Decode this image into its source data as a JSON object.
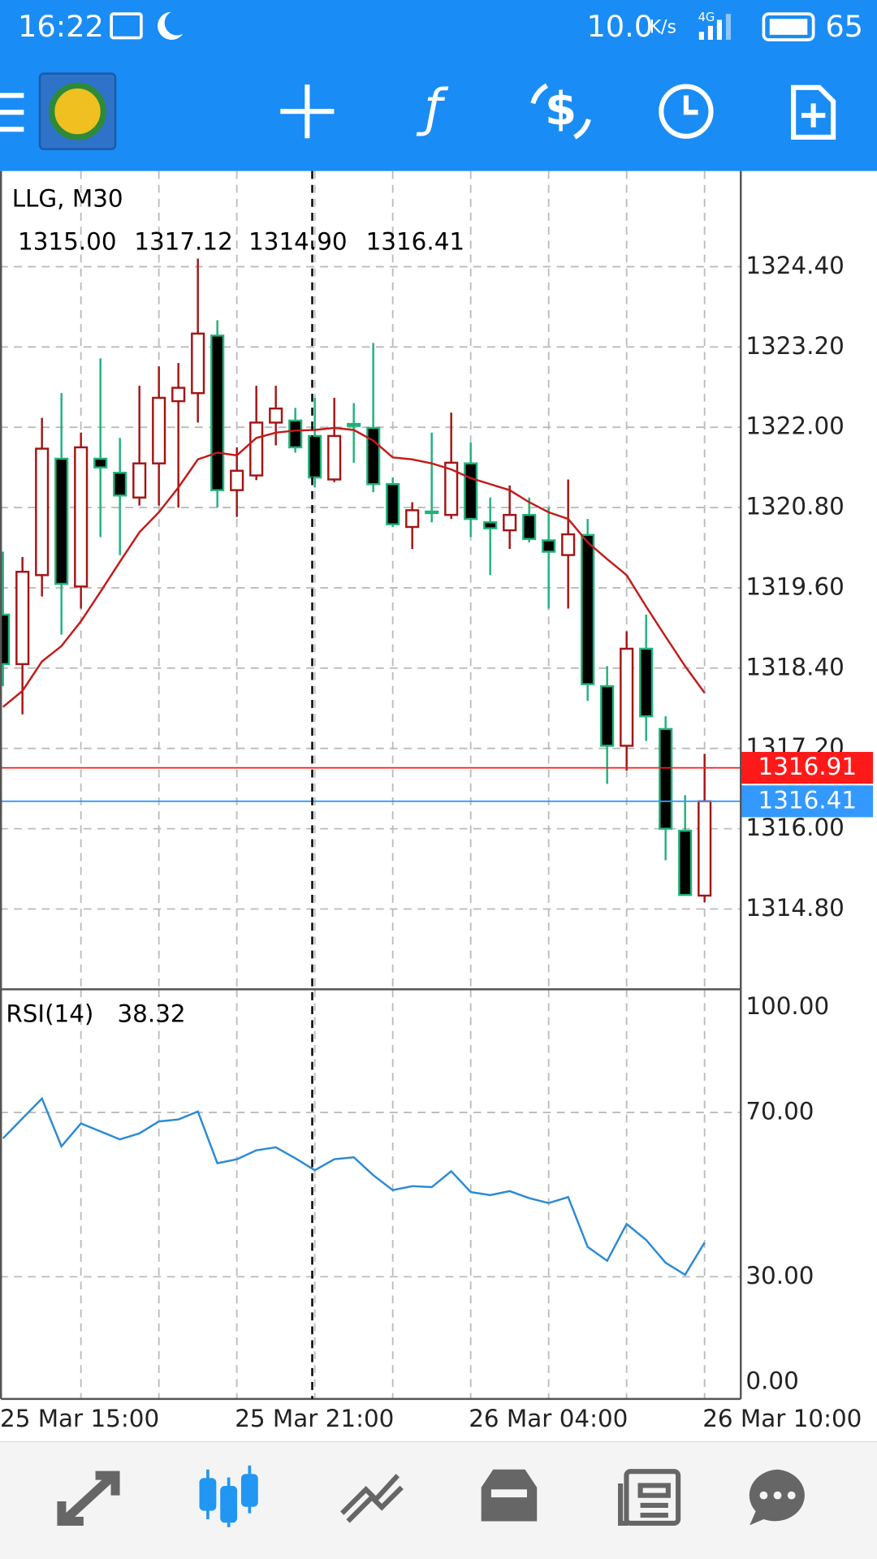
{
  "status_bar": {
    "time": "16:22",
    "speed": "10.0",
    "speed_unit": "K/s",
    "network": "4G",
    "battery": "65"
  },
  "chart_data": [
    {
      "type": "candlestick",
      "title": "LLG, M30",
      "ohlc_labels": [
        "1315.00",
        "1317.12",
        "1314.90",
        "1316.41"
      ],
      "categories": [
        "25 Mar 15:00",
        null,
        null,
        null,
        null,
        null,
        null,
        null,
        null,
        null,
        null,
        null,
        "25 Mar 21:00",
        null,
        null,
        null,
        null,
        null,
        null,
        null,
        null,
        null,
        null,
        null,
        "26 Mar 04:00",
        null,
        null,
        null,
        null,
        null,
        null,
        null,
        null,
        null,
        null,
        null,
        "26 Mar 10:00"
      ],
      "open": [
        1319.2,
        1318.46,
        1319.79,
        1321.53,
        1319.62,
        1321.53,
        1321.32,
        1320.95,
        1321.46,
        1322.39,
        1322.51,
        1323.37,
        1321.06,
        1321.28,
        1322.07,
        1322.1,
        1321.87,
        1321.22,
        1322.05,
        1321.99,
        1321.15,
        1320.51,
        1320.74,
        1320.69,
        1321.46,
        1320.58,
        1320.46,
        1320.69,
        1320.31,
        1320.09,
        1320.39,
        1318.13,
        1317.24,
        1318.69,
        1317.49,
        1315.97,
        1315.0
      ],
      "high": [
        1320.14,
        1320.06,
        1322.14,
        1322.51,
        1321.92,
        1323.03,
        1321.84,
        1322.62,
        1322.91,
        1322.96,
        1324.52,
        1323.6,
        1321.7,
        1322.62,
        1322.62,
        1322.29,
        1322.44,
        1322.44,
        1322.36,
        1323.26,
        1321.25,
        1320.88,
        1321.92,
        1322.22,
        1321.77,
        1320.95,
        1321.13,
        1320.95,
        1320.8,
        1321.22,
        1320.63,
        1318.43,
        1318.95,
        1319.2,
        1317.68,
        1316.5,
        1317.12
      ],
      "low": [
        1318.13,
        1317.71,
        1319.47,
        1318.9,
        1319.29,
        1320.36,
        1320.09,
        1320.83,
        1320.83,
        1320.8,
        1322.07,
        1320.8,
        1320.66,
        1321.21,
        1321.73,
        1321.62,
        1321.1,
        1321.18,
        1321.47,
        1321.03,
        1320.51,
        1320.18,
        1320.58,
        1320.63,
        1320.36,
        1319.79,
        1320.18,
        1320.28,
        1319.29,
        1319.29,
        1317.91,
        1316.67,
        1316.87,
        1317.31,
        1315.53,
        1315.01,
        1314.9
      ],
      "close": [
        1318.46,
        1319.84,
        1321.68,
        1319.66,
        1321.7,
        1321.4,
        1320.98,
        1321.46,
        1322.44,
        1322.59,
        1323.4,
        1321.06,
        1321.35,
        1322.07,
        1322.28,
        1321.7,
        1321.25,
        1321.87,
        1322.02,
        1321.15,
        1320.55,
        1320.76,
        1320.72,
        1321.47,
        1320.63,
        1320.49,
        1320.69,
        1320.33,
        1320.14,
        1320.4,
        1318.16,
        1317.24,
        1318.69,
        1317.68,
        1316.0,
        1315.01,
        1316.41
      ],
      "up_color": "#a31515",
      "down_color": "#1fb37a",
      "ma": {
        "color": "#c41a1a",
        "values": [
          1317.82,
          1318.06,
          1318.5,
          1318.73,
          1319.1,
          1319.54,
          1319.99,
          1320.43,
          1320.73,
          1321.1,
          1321.52,
          1321.62,
          1321.58,
          1321.84,
          1321.92,
          1321.95,
          1321.96,
          1321.99,
          1321.96,
          1321.8,
          1321.55,
          1321.52,
          1321.46,
          1321.37,
          1321.24,
          1321.15,
          1321.06,
          1320.88,
          1320.73,
          1320.63,
          1320.28,
          1320.03,
          1319.79,
          1319.32,
          1318.87,
          1318.43,
          1318.03
        ]
      },
      "price_lines": [
        {
          "value": 1316.91,
          "color": "#ff1a1a"
        },
        {
          "value": 1316.41,
          "color": "#3399ff"
        }
      ],
      "ylim": [
        1313.6,
        1325.83
      ],
      "yticks": [
        {
          "value": 1314.8,
          "label": "1314.80"
        },
        {
          "value": 1316,
          "label": "1316.00"
        },
        {
          "value": 1317.2,
          "label": "1317.20"
        },
        {
          "value": 1318.4,
          "label": "1318.40"
        },
        {
          "value": 1319.6,
          "label": "1319.60"
        },
        {
          "value": 1320.8,
          "label": "1320.80"
        },
        {
          "value": 1322,
          "label": "1322.00"
        },
        {
          "value": 1323.2,
          "label": "1323.20"
        },
        {
          "value": 1324.4,
          "label": "1324.40"
        }
      ],
      "grid": true
    },
    {
      "type": "line",
      "title": "RSI(14)",
      "color": "#2a8ad6",
      "values": [
        63.7,
        68.55,
        73.39,
        61.76,
        67.33,
        65.39,
        63.45,
        64.91,
        67.82,
        68.3,
        70.24,
        57.64,
        58.61,
        60.79,
        61.52,
        58.85,
        55.94,
        58.61,
        59.09,
        54.73,
        51.09,
        52.06,
        51.82,
        55.7,
        50.61,
        49.88,
        50.85,
        49.15,
        47.94,
        49.39,
        37.27,
        33.88,
        42.85,
        38.97,
        33.39,
        30.48,
        38.32
      ],
      "ylim": [
        0,
        100
      ],
      "yticks": [
        {
          "value": 0,
          "label": "0.00"
        },
        {
          "value": 30,
          "label": "30.00"
        },
        {
          "value": 70,
          "label": "70.00"
        },
        {
          "value": 100,
          "label": "100.00"
        }
      ],
      "grid": true
    }
  ]
}
